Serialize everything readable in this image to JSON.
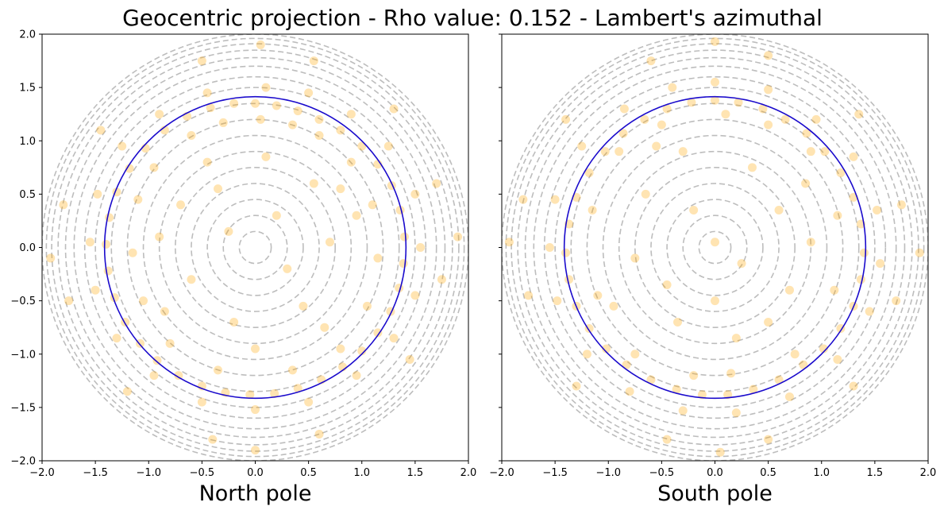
{
  "figure": {
    "title": "Geocentric projection - Rho value: 0.152 - Lambert's azimuthal"
  },
  "chart_data": [
    {
      "type": "scatter",
      "panel": "left",
      "xlabel": "North pole",
      "ylabel": "",
      "xlim": [
        -2.0,
        2.0
      ],
      "ylim": [
        -2.0,
        2.0
      ],
      "xticks": [
        "−2.0",
        "−1.5",
        "−1.0",
        "−0.5",
        "0.0",
        "0.5",
        "1.0",
        "1.5",
        "2.0"
      ],
      "yticks": [
        "−2.0",
        "−1.5",
        "−1.0",
        "−0.5",
        "0.0",
        "0.5",
        "1.0",
        "1.5",
        "2.0"
      ],
      "show_ytick_labels": true,
      "reference_circle": {
        "center": [
          0,
          0
        ],
        "radius": 1.414,
        "color": "#1a0acc"
      },
      "grid_circles": {
        "radii": [
          0.15,
          0.3,
          0.45,
          0.6,
          0.75,
          0.9,
          1.05,
          1.2,
          1.35,
          1.5,
          1.6,
          1.7,
          1.78,
          1.85,
          1.91,
          1.96,
          2.0
        ],
        "color": "#bdbdbd",
        "style": "dashed"
      },
      "points_color": "#ffa500",
      "points": [
        [
          0.0,
          1.35
        ],
        [
          0.2,
          1.33
        ],
        [
          0.4,
          1.28
        ],
        [
          0.6,
          1.2
        ],
        [
          0.8,
          1.1
        ],
        [
          1.0,
          0.95
        ],
        [
          1.15,
          0.78
        ],
        [
          1.28,
          0.58
        ],
        [
          1.36,
          0.35
        ],
        [
          1.4,
          0.1
        ],
        [
          1.39,
          -0.15
        ],
        [
          1.35,
          -0.38
        ],
        [
          1.27,
          -0.6
        ],
        [
          1.15,
          -0.8
        ],
        [
          1.0,
          -0.97
        ],
        [
          0.82,
          -1.12
        ],
        [
          0.62,
          -1.24
        ],
        [
          0.4,
          -1.32
        ],
        [
          0.18,
          -1.37
        ],
        [
          -0.05,
          -1.38
        ],
        [
          -0.28,
          -1.36
        ],
        [
          -0.5,
          -1.3
        ],
        [
          -0.72,
          -1.2
        ],
        [
          -0.92,
          -1.06
        ],
        [
          -1.08,
          -0.9
        ],
        [
          -1.22,
          -0.7
        ],
        [
          -1.32,
          -0.47
        ],
        [
          -1.38,
          -0.22
        ],
        [
          -1.4,
          0.03
        ],
        [
          -1.37,
          0.28
        ],
        [
          -1.3,
          0.52
        ],
        [
          -1.18,
          0.74
        ],
        [
          -1.03,
          0.93
        ],
        [
          -0.85,
          1.1
        ],
        [
          -0.64,
          1.23
        ],
        [
          -0.42,
          1.31
        ],
        [
          -0.2,
          1.35
        ],
        [
          0.1,
          1.5
        ],
        [
          0.5,
          1.45
        ],
        [
          0.9,
          1.25
        ],
        [
          1.25,
          0.95
        ],
        [
          1.5,
          0.5
        ],
        [
          1.55,
          0.0
        ],
        [
          1.5,
          -0.45
        ],
        [
          1.3,
          -0.85
        ],
        [
          0.95,
          -1.2
        ],
        [
          0.5,
          -1.45
        ],
        [
          0.0,
          -1.52
        ],
        [
          -0.5,
          -1.45
        ],
        [
          -0.95,
          -1.2
        ],
        [
          -1.3,
          -0.85
        ],
        [
          -1.5,
          -0.4
        ],
        [
          -1.55,
          0.05
        ],
        [
          -1.48,
          0.5
        ],
        [
          -1.25,
          0.95
        ],
        [
          -0.9,
          1.25
        ],
        [
          -0.45,
          1.45
        ],
        [
          0.05,
          1.2
        ],
        [
          0.35,
          1.15
        ],
        [
          -0.3,
          1.17
        ],
        [
          0.6,
          1.05
        ],
        [
          -0.6,
          1.05
        ],
        [
          0.9,
          0.8
        ],
        [
          -0.95,
          0.75
        ],
        [
          1.1,
          0.4
        ],
        [
          -1.1,
          0.45
        ],
        [
          1.15,
          -0.1
        ],
        [
          -1.15,
          -0.05
        ],
        [
          1.05,
          -0.55
        ],
        [
          -1.05,
          -0.5
        ],
        [
          0.8,
          -0.95
        ],
        [
          -0.8,
          -0.9
        ],
        [
          0.35,
          -1.15
        ],
        [
          -0.35,
          -1.15
        ],
        [
          0.1,
          0.85
        ],
        [
          -0.45,
          0.8
        ],
        [
          0.55,
          0.6
        ],
        [
          -0.7,
          0.4
        ],
        [
          0.7,
          0.05
        ],
        [
          -0.6,
          -0.3
        ],
        [
          0.45,
          -0.55
        ],
        [
          -0.2,
          -0.7
        ],
        [
          0.2,
          0.3
        ],
        [
          -0.25,
          0.15
        ],
        [
          0.3,
          -0.2
        ],
        [
          0.95,
          0.3
        ],
        [
          -0.85,
          -0.6
        ],
        [
          0.65,
          -0.75
        ],
        [
          0.0,
          -0.95
        ],
        [
          -0.35,
          0.55
        ],
        [
          0.8,
          0.55
        ],
        [
          -0.9,
          0.1
        ],
        [
          1.7,
          0.6
        ],
        [
          1.75,
          -0.3
        ],
        [
          1.45,
          -1.05
        ],
        [
          0.6,
          -1.75
        ],
        [
          -0.4,
          -1.8
        ],
        [
          -1.2,
          -1.35
        ],
        [
          -1.75,
          -0.5
        ],
        [
          -1.8,
          0.4
        ],
        [
          -1.45,
          1.1
        ],
        [
          -0.5,
          1.75
        ],
        [
          0.55,
          1.75
        ],
        [
          1.3,
          1.3
        ],
        [
          1.9,
          0.1
        ],
        [
          -1.92,
          -0.1
        ],
        [
          0.05,
          1.9
        ],
        [
          0.0,
          -1.9
        ]
      ]
    },
    {
      "type": "scatter",
      "panel": "right",
      "xlabel": "South pole",
      "ylabel": "",
      "xlim": [
        -2.0,
        2.0
      ],
      "ylim": [
        -2.0,
        2.0
      ],
      "xticks": [
        "−2.0",
        "−1.5",
        "−1.0",
        "−0.5",
        "0.0",
        "0.5",
        "1.0",
        "1.5",
        "2.0"
      ],
      "yticks": [
        "−2.0",
        "−1.5",
        "−1.0",
        "−0.5",
        "0.0",
        "0.5",
        "1.0",
        "1.5",
        "2.0"
      ],
      "show_ytick_labels": false,
      "reference_circle": {
        "center": [
          0,
          0
        ],
        "radius": 1.414,
        "color": "#1a0acc"
      },
      "grid_circles": {
        "radii": [
          0.15,
          0.3,
          0.45,
          0.6,
          0.75,
          0.9,
          1.05,
          1.2,
          1.35,
          1.5,
          1.6,
          1.7,
          1.78,
          1.85,
          1.91,
          1.96,
          2.0
        ],
        "color": "#bdbdbd",
        "style": "dashed"
      },
      "points_color": "#ffa500",
      "points": [
        [
          0.0,
          1.38
        ],
        [
          0.22,
          1.36
        ],
        [
          0.45,
          1.3
        ],
        [
          0.66,
          1.2
        ],
        [
          0.86,
          1.07
        ],
        [
          1.03,
          0.9
        ],
        [
          1.18,
          0.7
        ],
        [
          1.3,
          0.47
        ],
        [
          1.37,
          0.22
        ],
        [
          1.4,
          -0.05
        ],
        [
          1.37,
          -0.3
        ],
        [
          1.3,
          -0.55
        ],
        [
          1.18,
          -0.76
        ],
        [
          1.02,
          -0.95
        ],
        [
          0.83,
          -1.1
        ],
        [
          0.6,
          -1.24
        ],
        [
          0.36,
          -1.33
        ],
        [
          0.12,
          -1.38
        ],
        [
          -0.12,
          -1.38
        ],
        [
          -0.36,
          -1.33
        ],
        [
          -0.6,
          -1.24
        ],
        [
          -0.83,
          -1.1
        ],
        [
          -1.02,
          -0.95
        ],
        [
          -1.18,
          -0.76
        ],
        [
          -1.3,
          -0.55
        ],
        [
          -1.37,
          -0.3
        ],
        [
          -1.4,
          -0.05
        ],
        [
          -1.37,
          0.22
        ],
        [
          -1.3,
          0.47
        ],
        [
          -1.18,
          0.7
        ],
        [
          -1.03,
          0.9
        ],
        [
          -0.86,
          1.07
        ],
        [
          -0.66,
          1.2
        ],
        [
          -0.45,
          1.3
        ],
        [
          -0.22,
          1.36
        ],
        [
          0.0,
          1.55
        ],
        [
          0.5,
          1.48
        ],
        [
          0.95,
          1.2
        ],
        [
          1.3,
          0.85
        ],
        [
          1.52,
          0.35
        ],
        [
          1.55,
          -0.15
        ],
        [
          1.45,
          -0.6
        ],
        [
          1.15,
          -1.05
        ],
        [
          0.7,
          -1.4
        ],
        [
          0.2,
          -1.55
        ],
        [
          -0.3,
          -1.53
        ],
        [
          -0.8,
          -1.35
        ],
        [
          -1.2,
          -1.0
        ],
        [
          -1.48,
          -0.5
        ],
        [
          -1.55,
          0.0
        ],
        [
          -1.5,
          0.45
        ],
        [
          -1.25,
          0.95
        ],
        [
          -0.85,
          1.3
        ],
        [
          -0.4,
          1.5
        ],
        [
          0.1,
          1.25
        ],
        [
          0.5,
          1.15
        ],
        [
          -0.5,
          1.15
        ],
        [
          0.9,
          0.9
        ],
        [
          -0.9,
          0.9
        ],
        [
          1.15,
          0.3
        ],
        [
          -1.15,
          0.35
        ],
        [
          1.12,
          -0.4
        ],
        [
          -1.1,
          -0.45
        ],
        [
          0.75,
          -1.0
        ],
        [
          -0.75,
          -1.0
        ],
        [
          0.15,
          -1.18
        ],
        [
          -0.2,
          -1.2
        ],
        [
          -0.3,
          0.9
        ],
        [
          0.35,
          0.75
        ],
        [
          -0.65,
          0.5
        ],
        [
          0.6,
          0.35
        ],
        [
          -0.75,
          -0.1
        ],
        [
          0.7,
          -0.4
        ],
        [
          -0.35,
          -0.7
        ],
        [
          0.2,
          -0.85
        ],
        [
          0.0,
          0.05
        ],
        [
          -0.2,
          0.35
        ],
        [
          0.25,
          -0.15
        ],
        [
          0.9,
          0.05
        ],
        [
          -0.95,
          -0.55
        ],
        [
          0.5,
          -0.7
        ],
        [
          0.0,
          -0.5
        ],
        [
          -0.55,
          0.95
        ],
        [
          0.85,
          0.6
        ],
        [
          -0.45,
          -0.35
        ],
        [
          1.75,
          0.4
        ],
        [
          1.7,
          -0.5
        ],
        [
          1.3,
          -1.3
        ],
        [
          0.5,
          -1.8
        ],
        [
          -0.45,
          -1.8
        ],
        [
          -1.3,
          -1.3
        ],
        [
          -1.75,
          -0.45
        ],
        [
          -1.8,
          0.45
        ],
        [
          -1.4,
          1.2
        ],
        [
          -0.6,
          1.75
        ],
        [
          0.5,
          1.8
        ],
        [
          1.35,
          1.25
        ],
        [
          1.92,
          -0.05
        ],
        [
          -1.93,
          0.05
        ],
        [
          0.0,
          1.93
        ],
        [
          0.05,
          -1.92
        ]
      ]
    }
  ]
}
